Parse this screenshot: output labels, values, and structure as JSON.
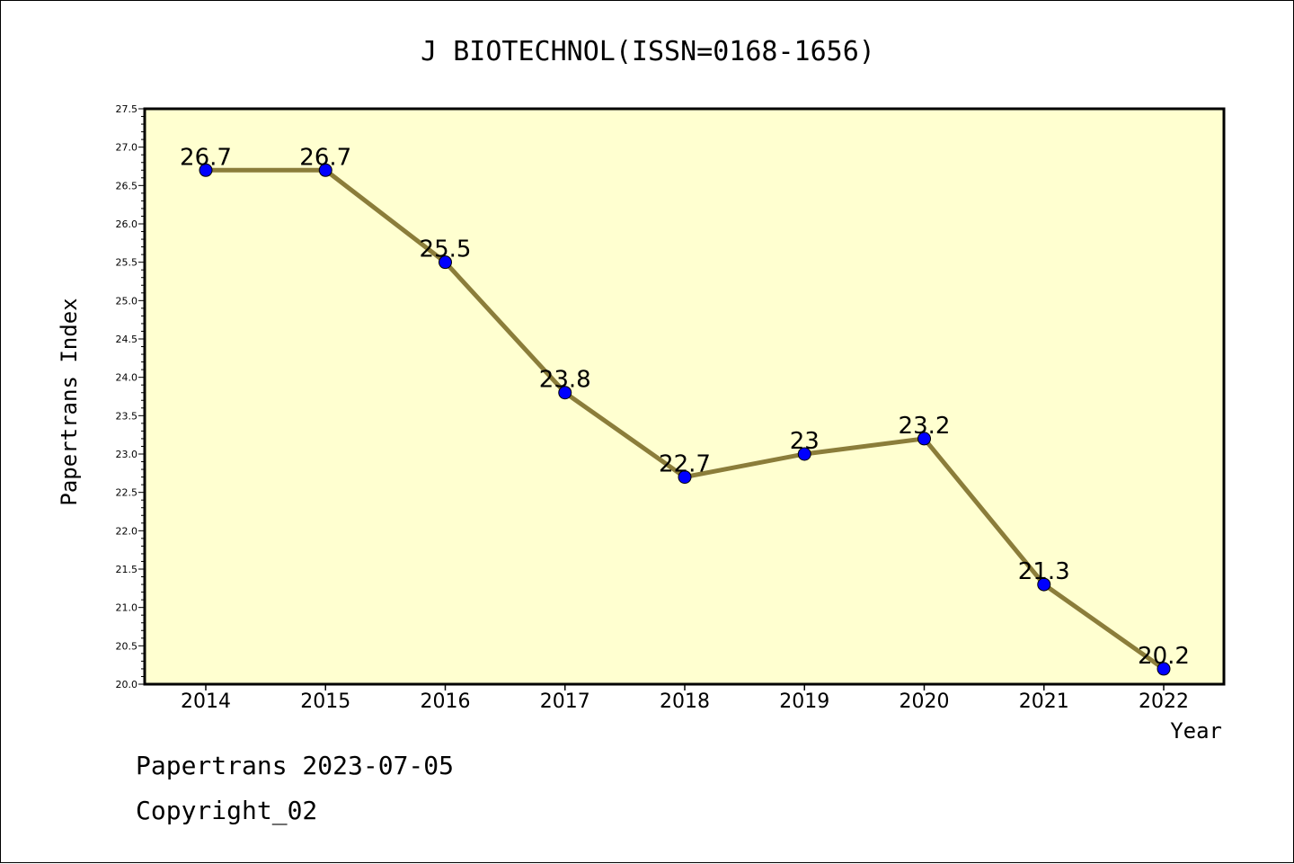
{
  "chart_data": {
    "type": "line",
    "title": "J BIOTECHNOL(ISSN=0168-1656)",
    "xlabel": "Year",
    "ylabel": "Papertrans Index",
    "categories": [
      "2014",
      "2015",
      "2016",
      "2017",
      "2018",
      "2019",
      "2020",
      "2021",
      "2022"
    ],
    "values": [
      26.7,
      26.7,
      25.5,
      23.8,
      22.7,
      23.0,
      23.2,
      21.3,
      20.2
    ],
    "data_labels": [
      "26.7",
      "26.7",
      "25.5",
      "23.8",
      "22.7",
      "23",
      "23.2",
      "21.3",
      "20.2"
    ],
    "ylim": [
      20.0,
      27.5
    ],
    "y_ticks": [
      "20.0",
      "20.5",
      "21.0",
      "21.5",
      "22.0",
      "22.5",
      "23.0",
      "23.5",
      "24.0",
      "24.5",
      "25.0",
      "25.5",
      "26.0",
      "26.5",
      "27.0",
      "27.5"
    ],
    "grid": false,
    "legend": "none",
    "colors": {
      "line": "#8b7d3a",
      "marker": "#0000ff",
      "plot_background": "#ffffd0"
    }
  },
  "footer": {
    "line1": "Papertrans 2023-07-05",
    "line2": "Copyright_02"
  }
}
